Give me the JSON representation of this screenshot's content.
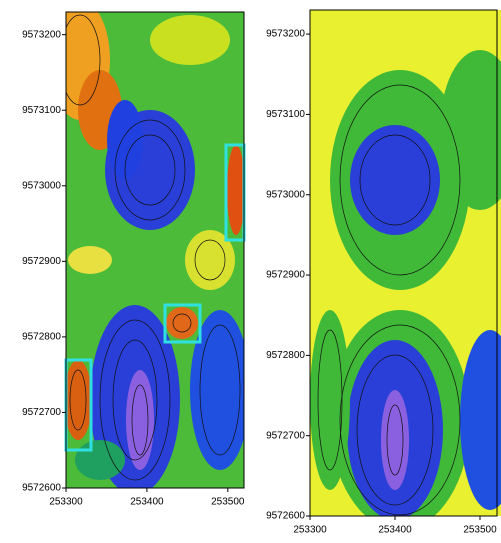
{
  "chart_data": [
    {
      "type": "contour",
      "xlim": [
        253300,
        253520
      ],
      "ylim": [
        9572600,
        9573230
      ],
      "xticks": [
        253300,
        253400,
        253500
      ],
      "yticks": [
        9572600,
        9572700,
        9572800,
        9572900,
        9573000,
        9573100,
        9573200
      ]
    },
    {
      "type": "contour",
      "xlim": [
        253300,
        253520
      ],
      "ylim": [
        9572600,
        9573230
      ],
      "xticks": [
        253300,
        253400,
        253500
      ],
      "yticks": [
        9572600,
        9572700,
        9572800,
        9572900,
        9573000,
        9573100,
        9573200
      ]
    }
  ]
}
